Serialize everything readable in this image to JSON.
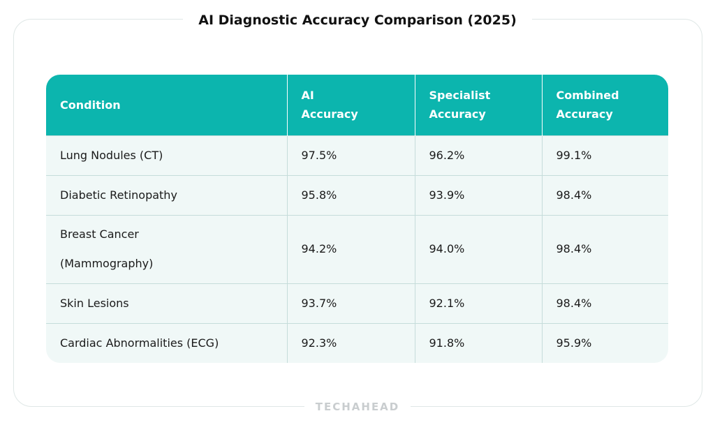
{
  "title": "AI Diagnostic Accuracy Comparison (2025)",
  "table": {
    "headers": [
      "Condition",
      "AI Accuracy",
      "Specialist Accuracy",
      "Combined Accuracy"
    ],
    "rows": [
      [
        "Lung Nodules (CT)",
        "97.5%",
        "96.2%",
        "99.1%"
      ],
      [
        "Diabetic Retinopathy",
        "95.8%",
        "93.9%",
        "98.4%"
      ],
      [
        "Breast Cancer (Mammography)",
        "94.2%",
        "94.0%",
        "98.4%"
      ],
      [
        "Skin Lesions",
        "93.7%",
        "92.1%",
        "98.4%"
      ],
      [
        "Cardiac Abnormalities (ECG)",
        "92.3%",
        "91.8%",
        "95.9%"
      ]
    ]
  },
  "colors": {
    "header_bg": "#0cb5ae",
    "row_bg": "#f0f8f7",
    "divider": "#c5dcda"
  },
  "watermark": "TECHAHEAD"
}
